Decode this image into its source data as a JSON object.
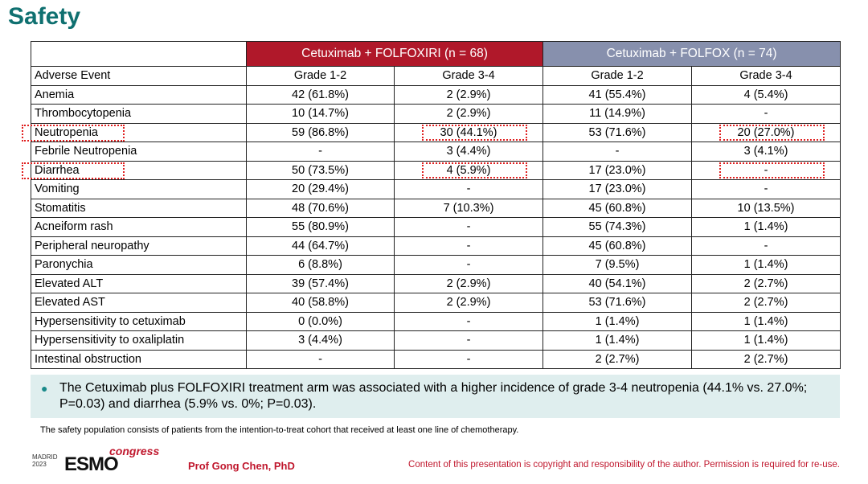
{
  "title": "Safety",
  "table": {
    "arms": [
      {
        "label": "Cetuximab + FOLFOXIRI  (n = 68)",
        "color": "#b0182a"
      },
      {
        "label": "Cetuximab + FOLFOX  (n = 74)",
        "color": "#8790ad"
      }
    ],
    "header": [
      "Adverse Event",
      "Grade 1-2",
      "Grade 3-4",
      "Grade 1-2",
      "Grade 3-4"
    ],
    "rows": [
      [
        "Anemia",
        "42 (61.8%)",
        "2 (2.9%)",
        "41 (55.4%)",
        "4 (5.4%)"
      ],
      [
        "Thrombocytopenia",
        "10 (14.7%)",
        "2 (2.9%)",
        "11 (14.9%)",
        "-"
      ],
      [
        "Neutropenia",
        "59 (86.8%)",
        "30 (44.1%)",
        "53 (71.6%)",
        "20 (27.0%)"
      ],
      [
        "Febrile Neutropenia",
        "-",
        "3 (4.4%)",
        "-",
        "3 (4.1%)"
      ],
      [
        "Diarrhea",
        "50 (73.5%)",
        "4 (5.9%)",
        "17 (23.0%)",
        "-"
      ],
      [
        "Vomiting",
        "20 (29.4%)",
        "-",
        "17 (23.0%)",
        "-"
      ],
      [
        "Stomatitis",
        "48 (70.6%)",
        "7 (10.3%)",
        "45 (60.8%)",
        "10 (13.5%)"
      ],
      [
        "Acneiform rash",
        "55 (80.9%)",
        "-",
        "55 (74.3%)",
        "1 (1.4%)"
      ],
      [
        "Peripheral neuropathy",
        "44 (64.7%)",
        "-",
        "45 (60.8%)",
        "-"
      ],
      [
        "Paronychia",
        "6 (8.8%)",
        "-",
        "7 (9.5%)",
        "1 (1.4%)"
      ],
      [
        "Elevated ALT",
        "39 (57.4%)",
        "2 (2.9%)",
        "40 (54.1%)",
        "2 (2.7%)"
      ],
      [
        "Elevated AST",
        "40 (58.8%)",
        "2 (2.9%)",
        "53 (71.6%)",
        "2 (2.7%)"
      ],
      [
        "Hypersensitivity to cetuximab",
        "0 (0.0%)",
        "-",
        "1 (1.4%)",
        "1 (1.4%)"
      ],
      [
        "Hypersensitivity to oxaliplatin",
        "3 (4.4%)",
        "-",
        "1 (1.4%)",
        "1 (1.4%)"
      ],
      [
        "Intestinal obstruction",
        "-",
        "-",
        "2 (2.7%)",
        "2 (2.7%)"
      ]
    ]
  },
  "note": "The Cetuximab plus FOLFOXIRI treatment arm was associated with a higher incidence of grade 3-4 neutropenia (44.1% vs. 27.0%; P=0.03) and diarrhea (5.9% vs. 0%; P=0.03).",
  "footnote": "The safety population consists of patients from the intention-to-treat cohort that received at least one line of chemotherapy.",
  "logo": {
    "city": "MADRID",
    "year": "2023",
    "mark": "ESMO",
    "congress": "congress"
  },
  "presenter": "Prof Gong Chen, PhD",
  "copyright": "Content of this presentation is copyright and responsibility of the author. Permission is required for re-use."
}
